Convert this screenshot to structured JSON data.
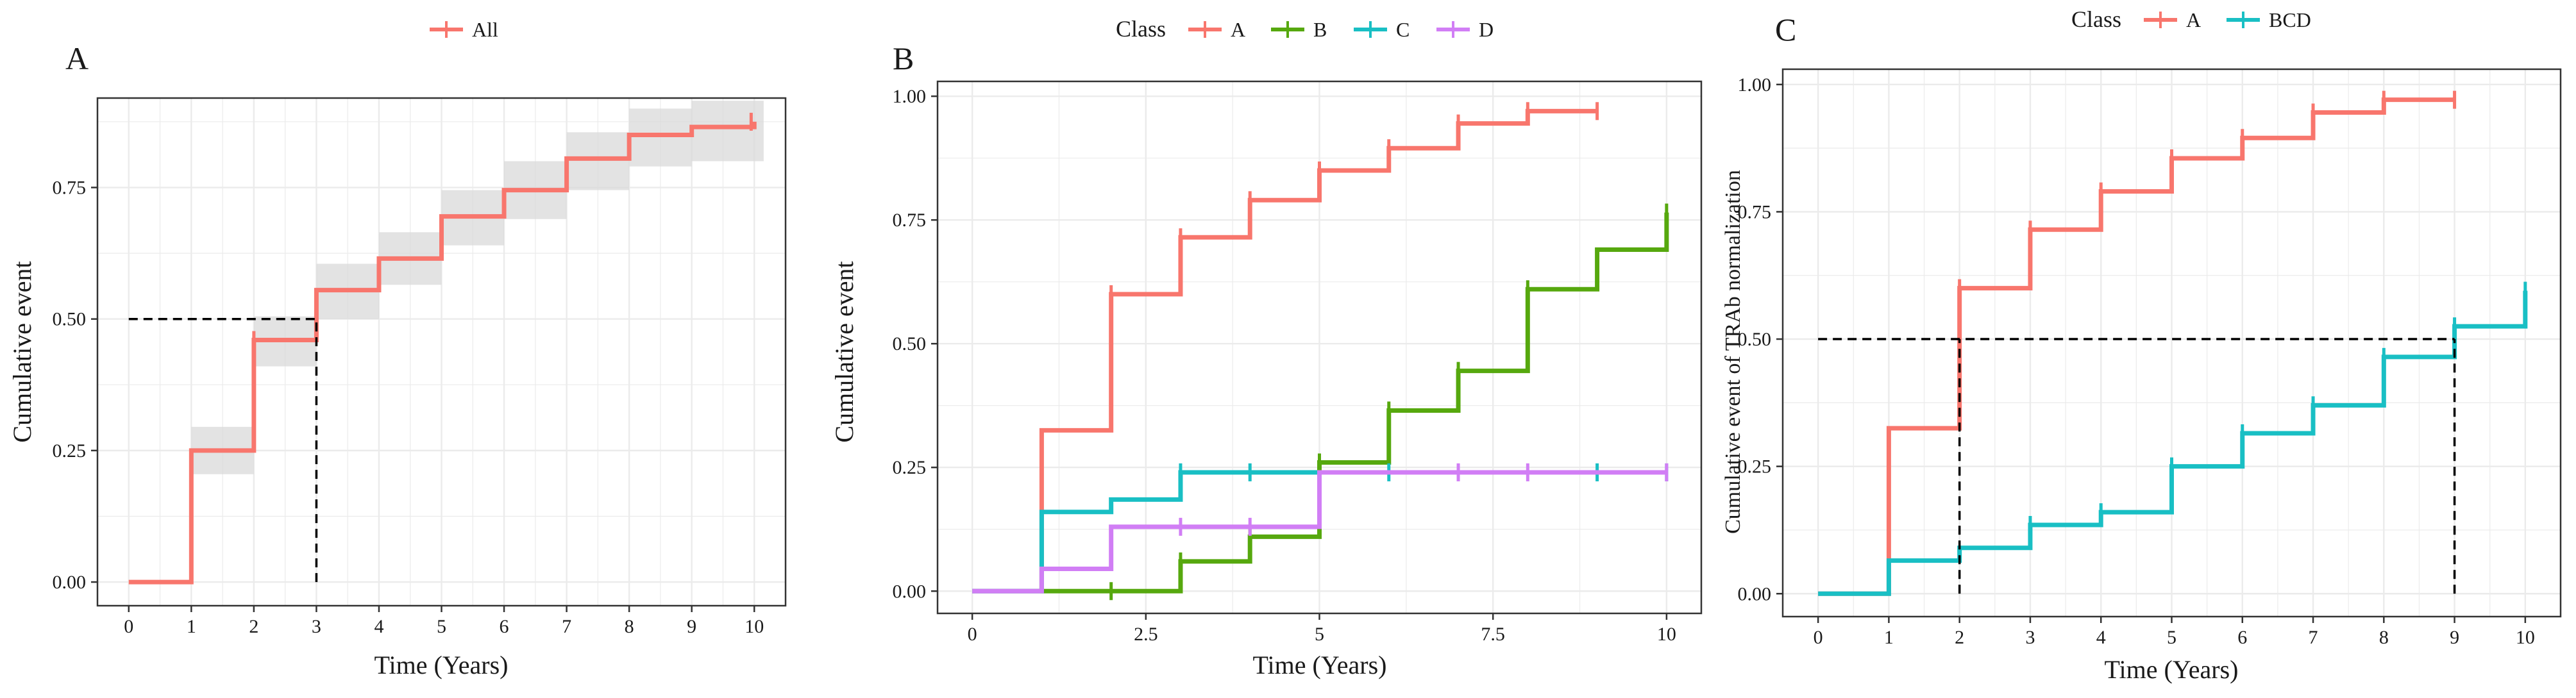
{
  "colors": {
    "A": "#F8766D",
    "B": "#56A80E",
    "C": "#19BFC4",
    "D": "#D17EF5",
    "BCD": "#19BFC4",
    "All": "#F8766D",
    "ribbon": "#D9D9D9",
    "grid": "#EBEBEB",
    "axis": "#333333"
  },
  "chart_data": [
    {
      "type": "line",
      "step": true,
      "panel_label": "A",
      "xlabel": "Time (Years)",
      "ylabel": "Cumulative event",
      "xlim": [
        -0.5,
        10.5
      ],
      "ylim": [
        -0.045,
        0.92
      ],
      "x_ticks": [
        "0",
        "1",
        "2",
        "3",
        "4",
        "5",
        "6",
        "7",
        "8",
        "9",
        "10"
      ],
      "x_tick_values": [
        0,
        1,
        2,
        3,
        4,
        5,
        6,
        7,
        8,
        9,
        10
      ],
      "y_ticks": [
        "0.00",
        "0.25",
        "0.50",
        "0.75"
      ],
      "y_tick_values": [
        0,
        0.25,
        0.5,
        0.75
      ],
      "legend": {
        "position": "top",
        "title": "",
        "entries": [
          "All"
        ]
      },
      "series": [
        {
          "name": "All",
          "color_key": "All",
          "x": [
            0,
            1,
            2,
            3,
            4,
            5,
            6,
            7,
            8,
            9,
            10
          ],
          "y": [
            0,
            0.25,
            0.46,
            0.555,
            0.615,
            0.695,
            0.745,
            0.805,
            0.85,
            0.865,
            0.875
          ],
          "ci_low": [
            0,
            0.205,
            0.41,
            0.5,
            0.565,
            0.64,
            0.69,
            0.745,
            0.79,
            0.8,
            0.8
          ],
          "ci_high": [
            0,
            0.295,
            0.505,
            0.605,
            0.665,
            0.745,
            0.8,
            0.855,
            0.9,
            0.915,
            0.915
          ],
          "censor_x": [
            2,
            9.95
          ],
          "censor_y": [
            0.46,
            0.875
          ]
        }
      ],
      "reference_lines": [
        {
          "kind": "h",
          "y": 0.5,
          "from": 0,
          "to": 3
        },
        {
          "kind": "v",
          "x": 3,
          "from": 0,
          "to": 0.5
        }
      ]
    },
    {
      "type": "line",
      "step": true,
      "panel_label": "B",
      "xlabel": "Time (Years)",
      "ylabel": "Cumulative event",
      "xlim": [
        -0.5,
        10.5
      ],
      "ylim": [
        -0.045,
        1.03
      ],
      "x_ticks": [
        "0",
        "2.5",
        "5",
        "7.5",
        "10"
      ],
      "x_tick_values": [
        0,
        2.5,
        5,
        7.5,
        10
      ],
      "y_ticks": [
        "0.00",
        "0.25",
        "0.50",
        "0.75",
        "1.00"
      ],
      "y_tick_values": [
        0,
        0.25,
        0.5,
        0.75,
        1.0
      ],
      "legend": {
        "position": "top",
        "title": "Class",
        "entries": [
          "A",
          "B",
          "C",
          "D"
        ]
      },
      "series": [
        {
          "name": "A",
          "color_key": "A",
          "x": [
            0,
            1,
            2,
            3,
            4,
            5,
            6,
            7,
            8,
            9
          ],
          "y": [
            0,
            0.325,
            0.6,
            0.715,
            0.79,
            0.85,
            0.895,
            0.945,
            0.97,
            0.97
          ],
          "censor_x": [
            2,
            3,
            4,
            5,
            6,
            7,
            8,
            9
          ],
          "censor_y": [
            0.6,
            0.715,
            0.79,
            0.85,
            0.895,
            0.945,
            0.97,
            0.97
          ]
        },
        {
          "name": "B",
          "color_key": "B",
          "x": [
            1,
            3,
            4,
            5,
            6,
            7,
            8,
            9,
            10
          ],
          "y": [
            0,
            0.06,
            0.11,
            0.26,
            0.365,
            0.445,
            0.61,
            0.69,
            0.765
          ],
          "censor_x": [
            2,
            3,
            4,
            5,
            6,
            7,
            8,
            10
          ],
          "censor_y": [
            0,
            0.06,
            0.11,
            0.26,
            0.365,
            0.445,
            0.61,
            0.765
          ]
        },
        {
          "name": "C",
          "color_key": "C",
          "x": [
            0,
            1,
            2,
            3,
            10
          ],
          "y": [
            0,
            0.16,
            0.185,
            0.24,
            0.24
          ],
          "censor_x": [
            3,
            4,
            6,
            9,
            10
          ],
          "censor_y": [
            0.24,
            0.24,
            0.24,
            0.24,
            0.24
          ]
        },
        {
          "name": "D",
          "color_key": "D",
          "x": [
            0,
            1,
            2,
            5,
            10
          ],
          "y": [
            0,
            0.045,
            0.13,
            0.24,
            0.24
          ],
          "censor_x": [
            3,
            4,
            7,
            8,
            10
          ],
          "censor_y": [
            0.13,
            0.13,
            0.24,
            0.24,
            0.24
          ]
        }
      ],
      "reference_lines": []
    },
    {
      "type": "line",
      "step": true,
      "panel_label": "C",
      "xlabel": "Time (Years)",
      "ylabel": "Cumulative event of TRAb normalization",
      "xlim": [
        -0.5,
        10.5
      ],
      "ylim": [
        -0.045,
        1.03
      ],
      "x_ticks": [
        "0",
        "1",
        "2",
        "3",
        "4",
        "5",
        "6",
        "7",
        "8",
        "9",
        "10"
      ],
      "x_tick_values": [
        0,
        1,
        2,
        3,
        4,
        5,
        6,
        7,
        8,
        9,
        10
      ],
      "y_ticks": [
        "0.00",
        "0.25",
        "0.50",
        "0.75",
        "1.00"
      ],
      "y_tick_values": [
        0,
        0.25,
        0.5,
        0.75,
        1.0
      ],
      "legend": {
        "position": "top",
        "title": "Class",
        "entries": [
          "A",
          "BCD"
        ]
      },
      "series": [
        {
          "name": "A",
          "color_key": "A",
          "x": [
            0,
            1,
            2,
            3,
            4,
            5,
            6,
            7,
            8,
            9
          ],
          "y": [
            0,
            0.325,
            0.6,
            0.715,
            0.79,
            0.855,
            0.895,
            0.945,
            0.97,
            0.97
          ],
          "censor_x": [
            2,
            3,
            4,
            5,
            6,
            7,
            8,
            9
          ],
          "censor_y": [
            0.6,
            0.715,
            0.79,
            0.855,
            0.895,
            0.945,
            0.97,
            0.97
          ]
        },
        {
          "name": "BCD",
          "color_key": "BCD",
          "x": [
            0,
            1,
            2,
            3,
            4,
            5,
            6,
            7,
            8,
            9,
            10
          ],
          "y": [
            0,
            0.065,
            0.09,
            0.135,
            0.16,
            0.25,
            0.315,
            0.37,
            0.465,
            0.525,
            0.595
          ],
          "censor_x": [
            3,
            4,
            5,
            6,
            7,
            8,
            9,
            10
          ],
          "censor_y": [
            0.135,
            0.16,
            0.25,
            0.315,
            0.37,
            0.465,
            0.525,
            0.595
          ]
        }
      ],
      "reference_lines": [
        {
          "kind": "h",
          "y": 0.5,
          "from": 0,
          "to": 9
        },
        {
          "kind": "v",
          "x": 2,
          "from": 0,
          "to": 0.5
        },
        {
          "kind": "v",
          "x": 9,
          "from": 0,
          "to": 0.5
        }
      ]
    }
  ]
}
